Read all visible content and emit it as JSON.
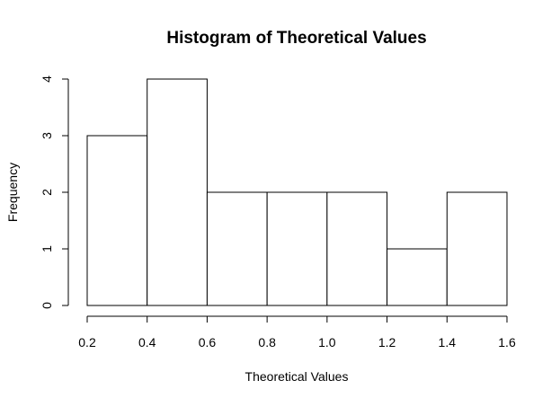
{
  "chart_data": {
    "type": "bar",
    "title": "Histogram of Theoretical Values",
    "xlabel": "Theoretical Values",
    "ylabel": "Frequency",
    "bins": [
      {
        "start": 0.2,
        "end": 0.4,
        "count": 3
      },
      {
        "start": 0.4,
        "end": 0.6,
        "count": 4
      },
      {
        "start": 0.6,
        "end": 0.8,
        "count": 2
      },
      {
        "start": 0.8,
        "end": 1.0,
        "count": 2
      },
      {
        "start": 1.0,
        "end": 1.2,
        "count": 2
      },
      {
        "start": 1.2,
        "end": 1.4,
        "count": 1
      },
      {
        "start": 1.4,
        "end": 1.6,
        "count": 2
      }
    ],
    "xlim": [
      0.2,
      1.6
    ],
    "ylim": [
      0,
      4
    ],
    "x_ticks": [
      "0.2",
      "0.4",
      "0.6",
      "0.8",
      "1.0",
      "1.2",
      "1.4",
      "1.6"
    ],
    "y_ticks": [
      "0",
      "1",
      "2",
      "3",
      "4"
    ],
    "grid": false,
    "legend": "none",
    "colors": {
      "bar_fill": "#ffffff",
      "bar_stroke": "#000000",
      "axis": "#000000"
    }
  }
}
